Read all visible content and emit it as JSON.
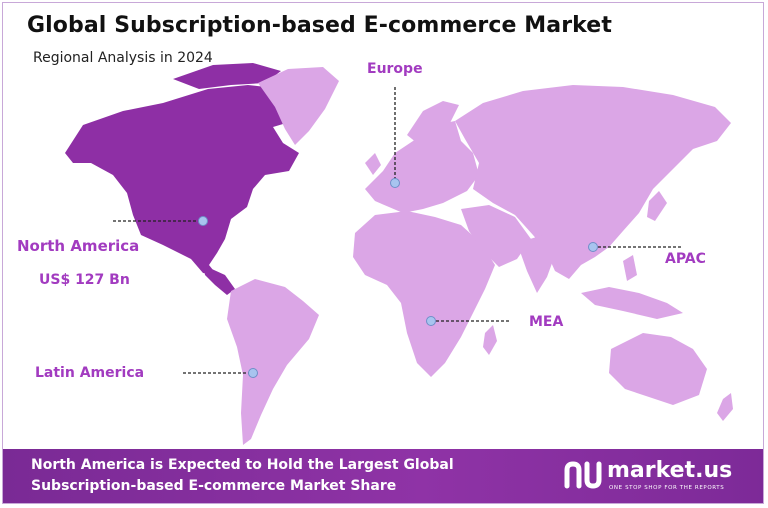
{
  "title": "Global Subscription-based E-commerce Market",
  "subtitle": "Regional Analysis in 2024",
  "regions": {
    "europe": "Europe",
    "north_america": "North America",
    "north_america_value": "US$ 127 Bn",
    "apac": "APAC",
    "mea": "MEA",
    "latin_america": "Latin America"
  },
  "banner": {
    "text": "North America is Expected to Hold the Largest Global Subscription-based E-commerce Market Share"
  },
  "brand": {
    "name": "market.us",
    "tagline": "ONE STOP SHOP FOR THE REPORTS"
  },
  "colors": {
    "highlight_region": "#8e2fa5",
    "other_regions": "#dba6e6",
    "label": "#a23bc0",
    "banner": "#7a2a95",
    "marker": "#a8c4ef"
  }
}
